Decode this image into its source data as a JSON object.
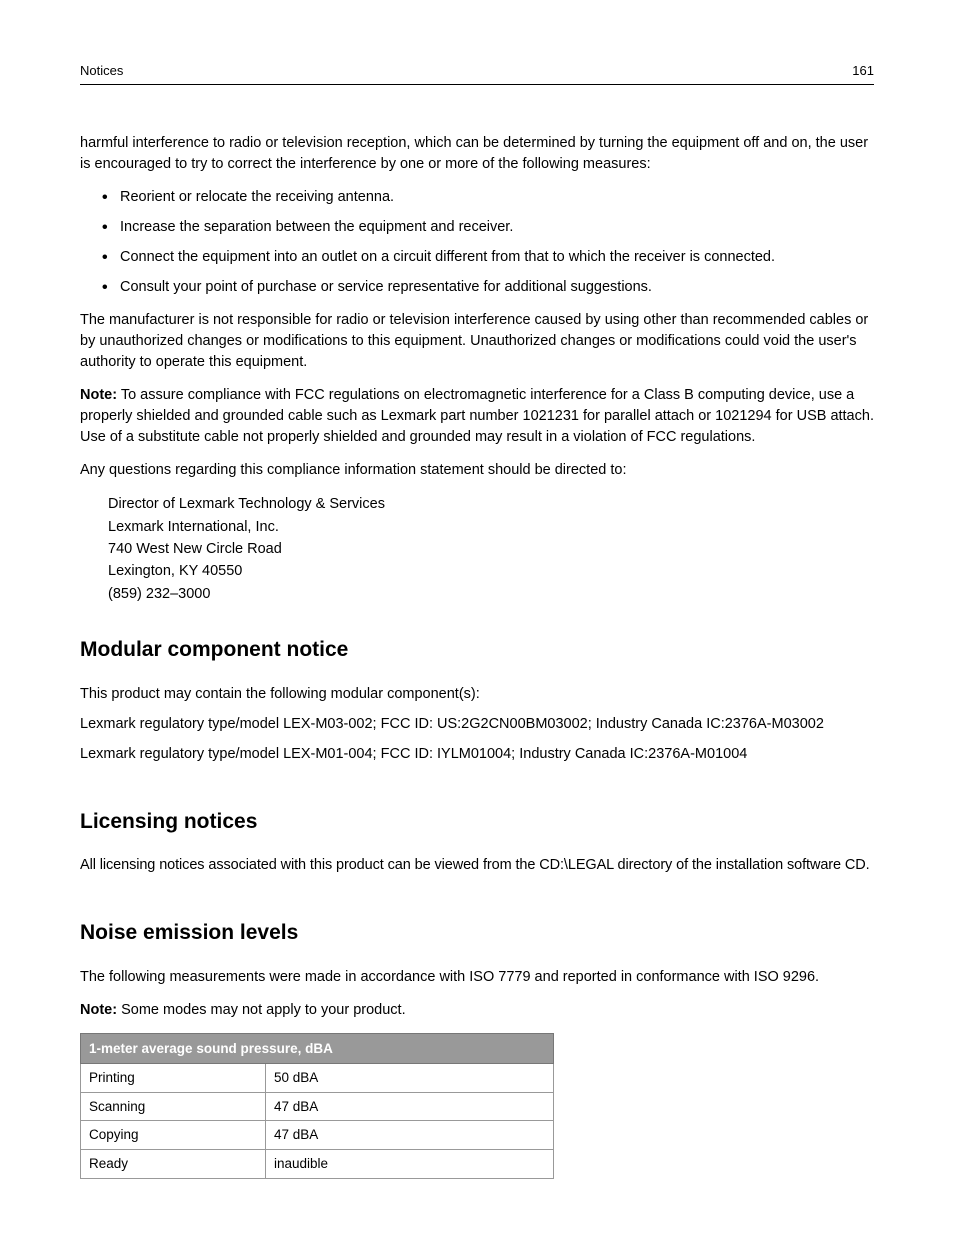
{
  "header": {
    "section": "Notices",
    "page": "161"
  },
  "intro": {
    "p1": "harmful interference to radio or television reception, which can be determined by turning the equipment off and on, the user is encouraged to try to correct the interference by one or more of the following measures:",
    "bullets": [
      "Reorient or relocate the receiving antenna.",
      "Increase the separation between the equipment and receiver.",
      "Connect the equipment into an outlet on a circuit different from that to which the receiver is connected.",
      "Consult your point of purchase or service representative for additional suggestions."
    ],
    "p2": "The manufacturer is not responsible for radio or television interference caused by using other than recommended cables or by unauthorized changes or modifications to this equipment. Unauthorized changes or modifications could void the user's authority to operate this equipment.",
    "noteLabel": "Note:",
    "noteText": " To assure compliance with FCC regulations on electromagnetic interference for a Class B computing device, use a properly shielded and grounded cable such as Lexmark part number 1021231 for parallel attach or 1021294 for USB attach. Use of a substitute cable not properly shielded and grounded may result in a violation of FCC regulations.",
    "p3": "Any questions regarding this compliance information statement should be directed to:",
    "address": [
      "Director of Lexmark Technology & Services",
      "Lexmark International, Inc.",
      "740 West New Circle Road",
      "Lexington, KY 40550",
      "(859) 232–3000"
    ]
  },
  "modular": {
    "heading": "Modular component notice",
    "p1": "This product may contain the following modular component(s):",
    "p2": "Lexmark regulatory type/model LEX-M03-002; FCC ID: US:2G2CN00BM03002; Industry Canada IC:2376A-M03002",
    "p3": "Lexmark regulatory type/model LEX-M01-004; FCC ID: IYLM01004; Industry Canada IC:2376A-M01004"
  },
  "licensing": {
    "heading": "Licensing notices",
    "p1": "All licensing notices associated with this product can be viewed from the CD:\\LEGAL directory of the installation software CD."
  },
  "noise": {
    "heading": "Noise emission levels",
    "p1": "The following measurements were made in accordance with ISO 7779 and reported in conformance with ISO 9296.",
    "noteLabel": "Note:",
    "noteText": " Some modes may not apply to your product.",
    "table": {
      "header": "1-meter average sound pressure, dBA",
      "rows": [
        {
          "mode": "Printing",
          "value": "50 dBA"
        },
        {
          "mode": "Scanning",
          "value": "47 dBA"
        },
        {
          "mode": "Copying",
          "value": "47 dBA"
        },
        {
          "mode": "Ready",
          "value": "inaudible"
        }
      ]
    }
  }
}
